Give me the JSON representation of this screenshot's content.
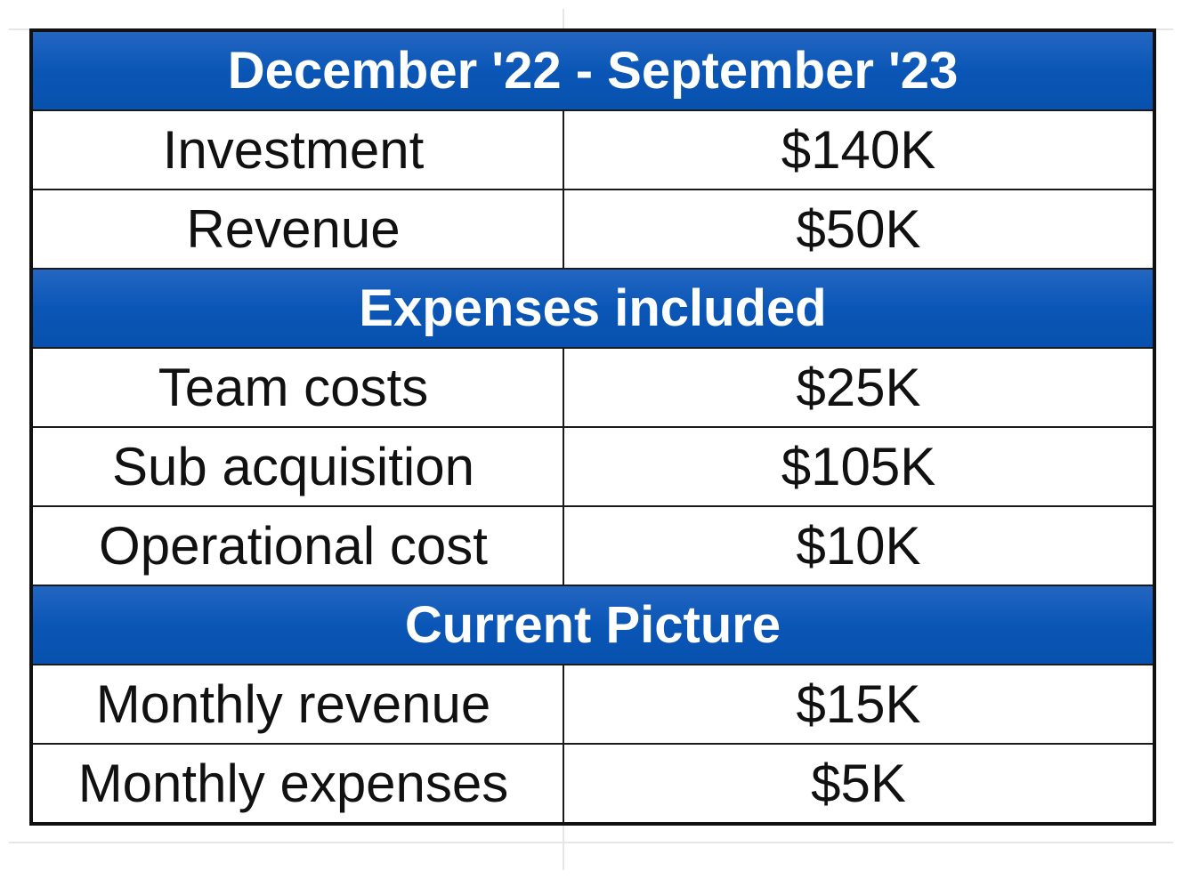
{
  "sections": [
    {
      "header": "December '22 - September '23",
      "rows": [
        {
          "label": "Investment",
          "value": "$140K"
        },
        {
          "label": "Revenue",
          "value": "$50K"
        }
      ]
    },
    {
      "header": "Expenses included",
      "rows": [
        {
          "label": "Team costs",
          "value": "$25K"
        },
        {
          "label": "Sub acquisition",
          "value": "$105K"
        },
        {
          "label": "Operational cost",
          "value": "$10K"
        }
      ]
    },
    {
      "header": "Current Picture",
      "rows": [
        {
          "label": "Monthly revenue",
          "value": "$15K"
        },
        {
          "label": "Monthly expenses",
          "value": "$5K"
        }
      ]
    }
  ],
  "colors": {
    "header_fill": "#0a56b6",
    "header_text": "#ffffff",
    "border": "#111111"
  }
}
